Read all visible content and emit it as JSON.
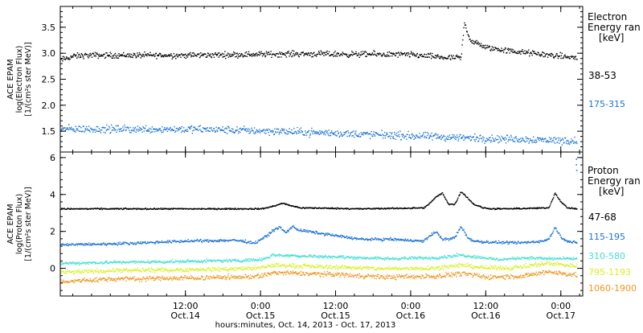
{
  "xaxis": {
    "label": "hours:minutes, Oct. 14, 2013 - Oct. 17, 2013",
    "time_range_hours": [
      -8.0,
      75.5
    ],
    "ticks": [
      {
        "hour": 12,
        "time": "12:00",
        "date": "Oct.14"
      },
      {
        "hour": 24,
        "time": "0:00",
        "date": "Oct.15"
      },
      {
        "hour": 36,
        "time": "12:00",
        "date": "Oct.15"
      },
      {
        "hour": 48,
        "time": "0:00",
        "date": "Oct.16"
      },
      {
        "hour": 60,
        "time": "12:00",
        "date": "Oct.16"
      },
      {
        "hour": 72,
        "time": "0:00",
        "date": "Oct.17"
      }
    ],
    "minor_tick_every_hours": 3
  },
  "colors": {
    "black": "#000000",
    "blue": "#1b73d3",
    "cyan": "#3fe0d0",
    "yellow": "#d8f020",
    "orange": "#f0961e"
  },
  "chart_data": [
    {
      "type": "scatter",
      "ylabel_lines": [
        "ACE EPAM",
        "log(Electron Flux)",
        "[1/(cm²s ster MeV)]"
      ],
      "legend_title_lines": [
        "Electron",
        "Energy ran",
        "[keV]"
      ],
      "ylim": [
        1.1,
        3.9
      ],
      "yticks": [
        1.5,
        2.0,
        2.5,
        3.0,
        3.5
      ],
      "ytick_labels": [
        "1.5",
        "2.0",
        "2.5",
        "3.0",
        "3.5"
      ],
      "series": [
        {
          "name": "38-53",
          "color": "black",
          "x": [
            -8,
            -6,
            -4,
            0,
            6,
            12,
            18,
            24,
            30,
            36,
            42,
            48,
            54,
            56,
            56.5,
            57.5,
            60,
            64,
            68,
            72,
            74.5
          ],
          "y": [
            2.88,
            2.95,
            2.97,
            2.97,
            2.97,
            2.97,
            2.98,
            2.99,
            3.0,
            2.99,
            2.99,
            2.98,
            2.92,
            2.92,
            3.6,
            3.25,
            3.12,
            3.05,
            3.0,
            2.95,
            2.92
          ],
          "noise": 0.06
        },
        {
          "name": "175-315",
          "color": "blue",
          "x": [
            -8,
            0,
            12,
            24,
            36,
            48,
            60,
            68,
            74.5
          ],
          "y": [
            1.55,
            1.55,
            1.55,
            1.52,
            1.47,
            1.42,
            1.37,
            1.35,
            1.32
          ],
          "noise": 0.08
        }
      ]
    },
    {
      "type": "scatter",
      "ylabel_lines": [
        "ACE EPAM",
        "log(Proton Flux)",
        "[1/(cm²s ster MeV)]"
      ],
      "legend_title_lines": [
        "Proton",
        "Energy ran",
        "[keV]"
      ],
      "ylim": [
        -1.5,
        6.3
      ],
      "yticks": [
        0,
        2,
        4,
        6
      ],
      "ytick_labels": [
        "0",
        "2",
        "4",
        "6"
      ],
      "series": [
        {
          "name": "47-68",
          "color": "black",
          "x": [
            -8,
            24,
            25.5,
            26.5,
            27.5,
            29,
            30.5,
            32,
            40,
            50,
            50.5,
            52,
            53,
            54,
            55,
            56,
            58,
            59.5,
            61,
            63,
            70,
            71,
            72,
            73,
            74.5
          ],
          "y": [
            3.25,
            3.25,
            3.35,
            3.45,
            3.55,
            3.4,
            3.3,
            3.3,
            3.25,
            3.3,
            3.4,
            3.9,
            4.1,
            3.5,
            3.5,
            4.2,
            3.5,
            3.3,
            3.25,
            3.25,
            3.3,
            4.1,
            3.6,
            3.3,
            3.25
          ],
          "noise": 0.04
        },
        {
          "name": "115-195",
          "color": "blue",
          "x": [
            -8,
            0,
            12,
            20,
            23,
            25,
            26,
            27,
            28,
            29,
            30,
            32,
            36,
            40,
            45,
            50,
            51,
            52,
            53,
            54,
            55,
            56,
            57,
            58,
            60,
            65,
            69,
            70,
            71,
            72,
            73,
            74.5
          ],
          "y": [
            1.3,
            1.35,
            1.5,
            1.55,
            1.4,
            1.8,
            2.1,
            2.25,
            1.95,
            2.3,
            2.1,
            2.0,
            1.8,
            1.6,
            1.6,
            1.5,
            1.8,
            2.0,
            1.6,
            1.6,
            1.7,
            2.3,
            1.7,
            1.5,
            1.45,
            1.4,
            1.5,
            1.6,
            2.25,
            1.7,
            1.5,
            1.4
          ],
          "noise": 0.08
        },
        {
          "name": "310-580",
          "color": "cyan",
          "x": [
            -8,
            0,
            12,
            20,
            24,
            26,
            30,
            36,
            44,
            52,
            56,
            62,
            66,
            70,
            74.5
          ],
          "y": [
            0.3,
            0.35,
            0.4,
            0.45,
            0.5,
            0.75,
            0.7,
            0.65,
            0.55,
            0.6,
            0.75,
            0.5,
            0.6,
            0.55,
            0.55
          ],
          "noise": 0.09
        },
        {
          "name": "795-1193",
          "color": "yellow",
          "x": [
            -8,
            0,
            12,
            20,
            24,
            26,
            30,
            36,
            44,
            52,
            56,
            60,
            64,
            70,
            74.5
          ],
          "y": [
            -0.2,
            -0.1,
            -0.05,
            0.0,
            0.05,
            0.2,
            0.15,
            0.1,
            0.0,
            0.05,
            0.2,
            0.05,
            0.05,
            0.3,
            0.15
          ],
          "noise": 0.12
        },
        {
          "name": "1060-1900",
          "color": "orange",
          "x": [
            -8,
            0,
            12,
            20,
            24,
            26,
            30,
            36,
            44,
            52,
            56,
            60,
            66,
            70,
            74.5
          ],
          "y": [
            -0.7,
            -0.55,
            -0.5,
            -0.45,
            -0.4,
            -0.2,
            -0.25,
            -0.3,
            -0.45,
            -0.4,
            -0.25,
            -0.45,
            -0.4,
            -0.15,
            -0.35
          ],
          "noise": 0.14
        },
        {
          "name": "",
          "color": "blue",
          "spike": true,
          "x": [
            74.4,
            74.4,
            74.45
          ],
          "y": [
            5.9,
            5.6,
            5.3
          ],
          "noise": 0
        }
      ]
    }
  ]
}
